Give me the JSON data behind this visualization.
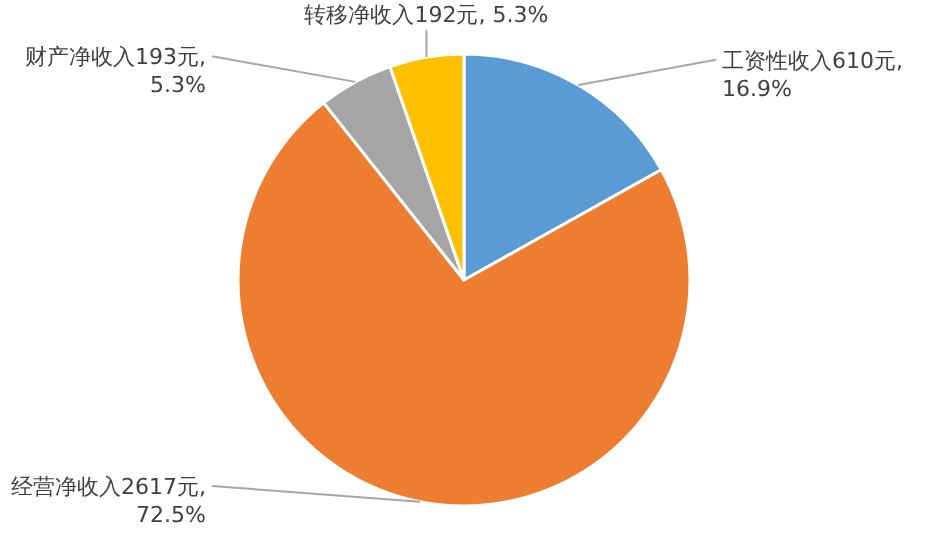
{
  "chart_data": {
    "type": "pie",
    "categories": [
      "工资性收入",
      "经营净收入",
      "财产净收入",
      "转移净收入"
    ],
    "values": [
      610,
      2617,
      193,
      192
    ],
    "colors": [
      "#5b9bd5",
      "#ed7d31",
      "#a5a5a5",
      "#ffc000"
    ],
    "value_labels": [
      "610元,\n16.9%",
      "2617元,\n72.5%",
      "193元,\n5.3%",
      "192元, 5.3%"
    ]
  }
}
